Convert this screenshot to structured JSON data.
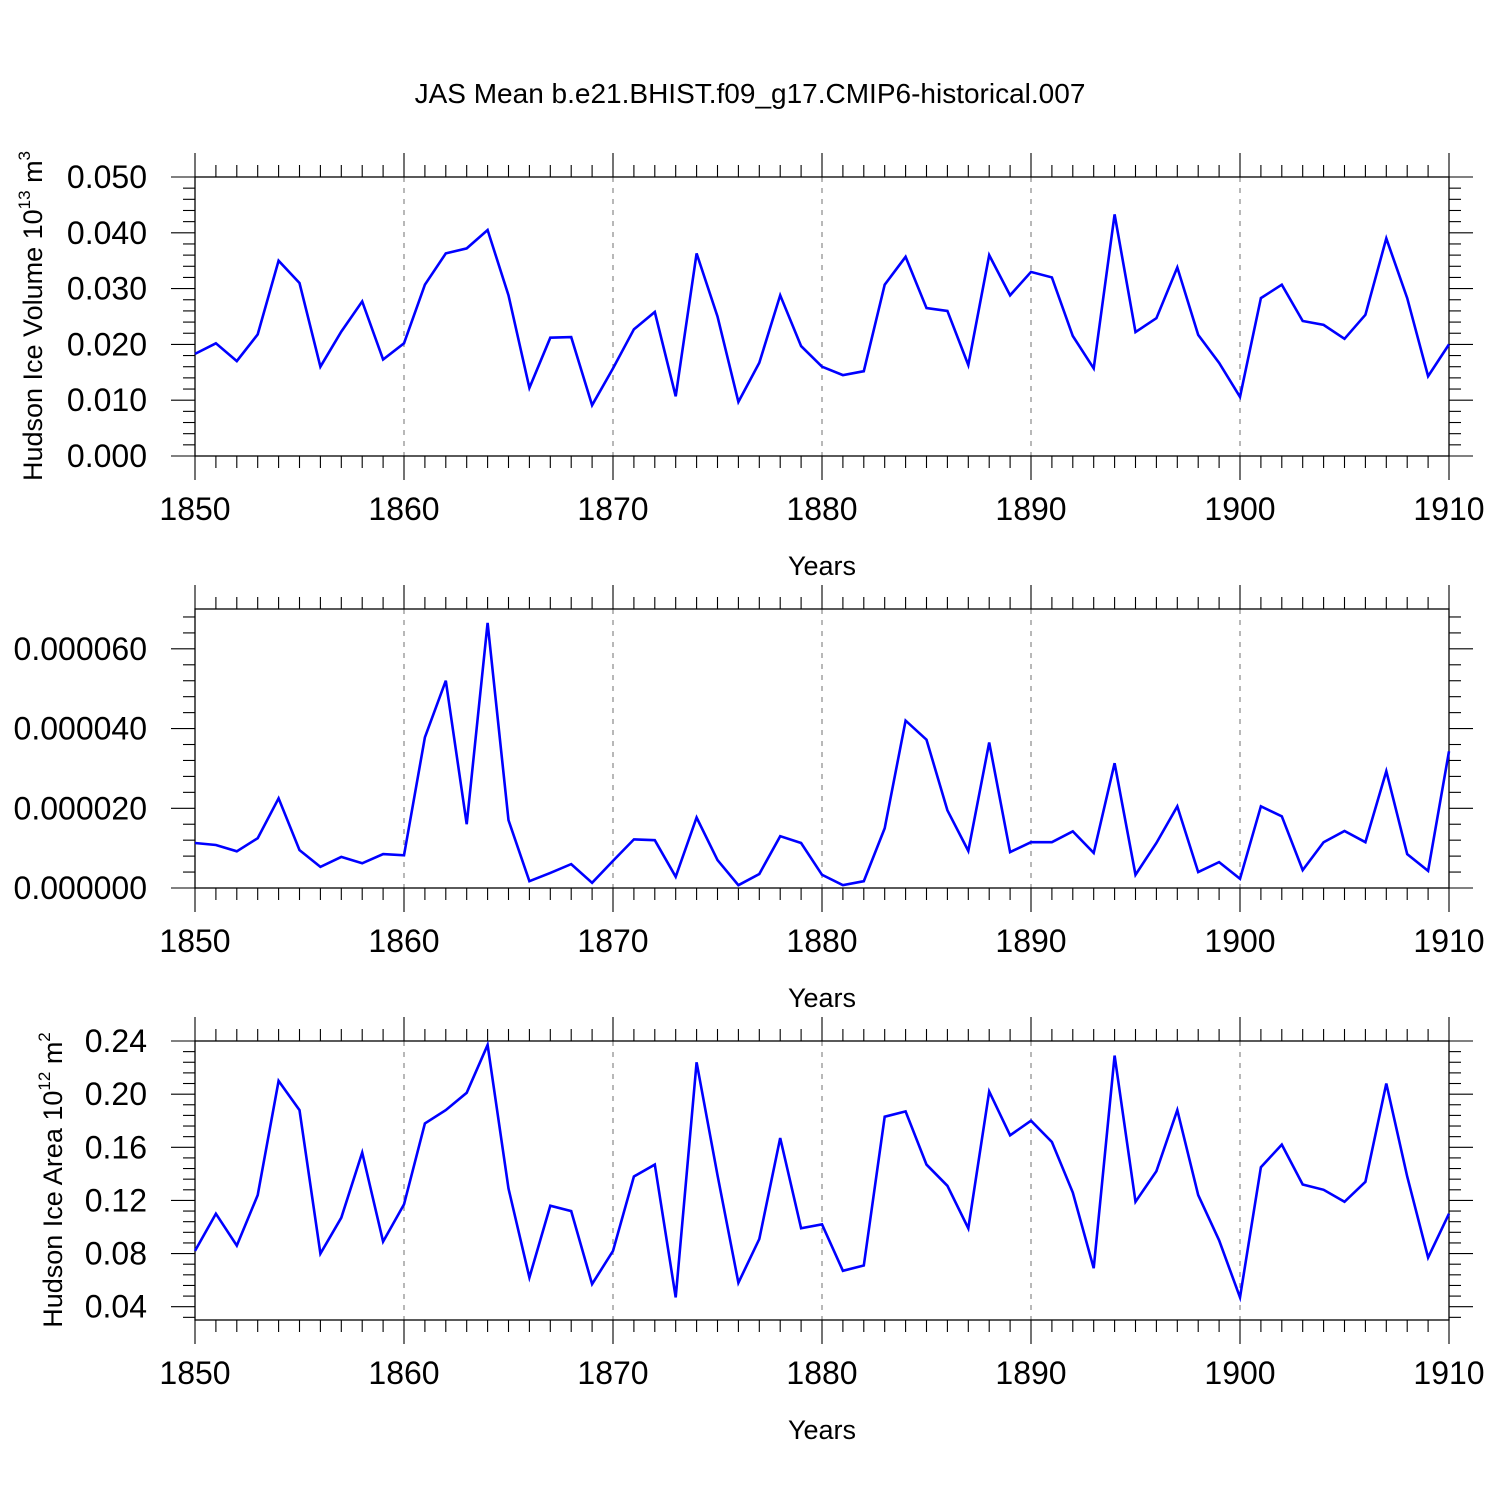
{
  "title": "JAS Mean b.e21.BHIST.f09_g17.CMIP6-historical.007",
  "colors": {
    "line": "#0000ff",
    "axis": "#000000",
    "grid": "#888888"
  },
  "chart_data": [
    {
      "type": "line",
      "title": "",
      "xlabel": "Years",
      "ylabel": "Hudson Ice Volume 10",
      "ylabel_exp": "13",
      "ylabel_unit": " m",
      "ylabel_unit_exp": "3",
      "xlim": [
        1850,
        1910
      ],
      "ylim": [
        0,
        0.05
      ],
      "xticks": [
        1850,
        1860,
        1870,
        1880,
        1890,
        1900,
        1910
      ],
      "yticks": [
        0,
        0.01,
        0.02,
        0.03,
        0.04,
        0.05
      ],
      "ytick_labels": [
        "0.000",
        "0.010",
        "0.020",
        "0.030",
        "0.040",
        "0.050"
      ],
      "grid_x": [
        1860,
        1870,
        1880,
        1890,
        1900
      ],
      "x_start": 1850,
      "values": [
        0.0183,
        0.0202,
        0.017,
        0.0218,
        0.035,
        0.031,
        0.016,
        0.0223,
        0.0277,
        0.0173,
        0.0202,
        0.0307,
        0.0363,
        0.0372,
        0.0405,
        0.0288,
        0.0122,
        0.0212,
        0.0213,
        0.0091,
        0.0157,
        0.0227,
        0.0258,
        0.0107,
        0.0363,
        0.025,
        0.0097,
        0.0167,
        0.0288,
        0.0197,
        0.016,
        0.0145,
        0.0152,
        0.0307,
        0.0357,
        0.0265,
        0.026,
        0.0163,
        0.036,
        0.0288,
        0.033,
        0.032,
        0.0215,
        0.0157,
        0.0433,
        0.0222,
        0.0247,
        0.0338,
        0.0217,
        0.0167,
        0.0106,
        0.0283,
        0.0307,
        0.0242,
        0.0235,
        0.021,
        0.0253,
        0.039,
        0.0283,
        0.0143,
        0.02
      ]
    },
    {
      "type": "line",
      "title": "",
      "xlabel": "Years",
      "ylabel": "",
      "xlim": [
        1850,
        1910
      ],
      "ylim": [
        0,
        7e-05
      ],
      "xticks": [
        1850,
        1860,
        1870,
        1880,
        1890,
        1900,
        1910
      ],
      "yticks": [
        0,
        2e-05,
        4e-05,
        6e-05
      ],
      "ytick_labels": [
        "0.000000",
        "0.000020",
        "0.000040",
        "0.000060"
      ],
      "grid_x": [
        1860,
        1870,
        1880,
        1890,
        1900
      ],
      "x_start": 1850,
      "values": [
        1.13e-05,
        1.08e-05,
        9.2e-06,
        1.25e-05,
        2.25e-05,
        9.5e-06,
        5.3e-06,
        7.8e-06,
        6.2e-06,
        8.5e-06,
        8.2e-06,
        3.78e-05,
        5.2e-05,
        1.6e-05,
        6.65e-05,
        1.7e-05,
        1.7e-06,
        3.8e-06,
        6e-06,
        1.3e-06,
        6.8e-06,
        1.22e-05,
        1.2e-05,
        2.8e-06,
        1.77e-05,
        7e-06,
        7e-07,
        3.5e-06,
        1.3e-05,
        1.13e-05,
        3.3e-06,
        7e-07,
        1.7e-06,
        1.5e-05,
        4.2e-05,
        3.72e-05,
        1.95e-05,
        9.3e-06,
        3.65e-05,
        9e-06,
        1.15e-05,
        1.15e-05,
        1.42e-05,
        8.8e-06,
        3.13e-05,
        3.3e-06,
        1.13e-05,
        2.05e-05,
        4e-06,
        6.5e-06,
        2.3e-06,
        2.05e-05,
        1.8e-05,
        4.5e-06,
        1.15e-05,
        1.43e-05,
        1.15e-05,
        2.93e-05,
        8.5e-06,
        4.3e-06,
        3.43e-05
      ]
    },
    {
      "type": "line",
      "title": "",
      "xlabel": "Years",
      "ylabel": "Hudson Ice Area 10",
      "ylabel_exp": "12",
      "ylabel_unit": " m",
      "ylabel_unit_exp": "2",
      "xlim": [
        1850,
        1910
      ],
      "ylim": [
        0.03,
        0.24
      ],
      "xticks": [
        1850,
        1860,
        1870,
        1880,
        1890,
        1900,
        1910
      ],
      "yticks": [
        0.04,
        0.08,
        0.12,
        0.16,
        0.2,
        0.24
      ],
      "ytick_labels": [
        "0.04",
        "0.08",
        "0.12",
        "0.16",
        "0.20",
        "0.24"
      ],
      "grid_x": [
        1860,
        1870,
        1880,
        1890,
        1900
      ],
      "x_start": 1850,
      "values": [
        0.082,
        0.11,
        0.086,
        0.124,
        0.21,
        0.188,
        0.08,
        0.107,
        0.156,
        0.089,
        0.117,
        0.178,
        0.188,
        0.201,
        0.237,
        0.129,
        0.062,
        0.116,
        0.112,
        0.057,
        0.082,
        0.138,
        0.147,
        0.047,
        0.224,
        0.139,
        0.058,
        0.091,
        0.167,
        0.099,
        0.102,
        0.067,
        0.071,
        0.183,
        0.187,
        0.147,
        0.131,
        0.099,
        0.202,
        0.169,
        0.18,
        0.164,
        0.126,
        0.069,
        0.229,
        0.119,
        0.142,
        0.188,
        0.124,
        0.09,
        0.047,
        0.145,
        0.162,
        0.132,
        0.128,
        0.119,
        0.134,
        0.208,
        0.138,
        0.077,
        0.11
      ]
    }
  ]
}
